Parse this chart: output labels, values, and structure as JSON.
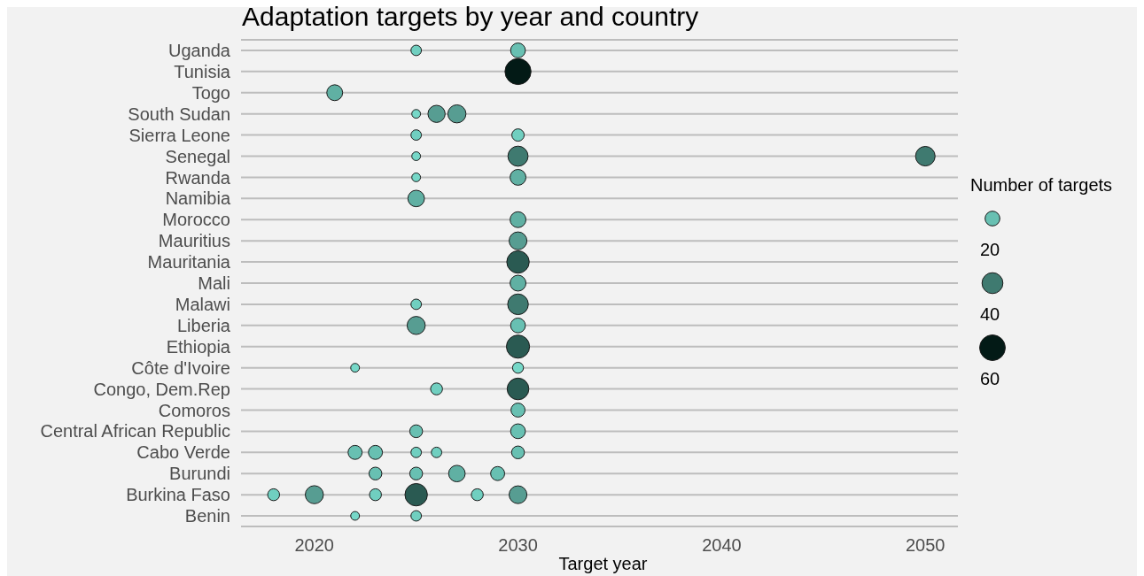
{
  "chart_data": {
    "type": "bubble",
    "orientation": "horizontal",
    "title": "Adaptation targets by year and country",
    "xlabel": "Target year",
    "legend_title": "Number of targets",
    "grid": "y",
    "marker": "circle",
    "categories": [
      "Uganda",
      "Tunisia",
      "Togo",
      "South Sudan",
      "Sierra Leone",
      "Senegal",
      "Rwanda",
      "Namibia",
      "Morocco",
      "Mauritius",
      "Mauritania",
      "Mali",
      "Malawi",
      "Liberia",
      "Ethiopia",
      "Côte d'Ivoire",
      "Congo, Dem.Rep",
      "Comoros",
      "Central African Republic",
      "Cabo Verde",
      "Burundi",
      "Burkina Faso",
      "Benin"
    ],
    "xlim": [
      2016.4,
      2051.6
    ],
    "xticks": [
      2020,
      2030,
      2040,
      2050
    ],
    "size_legend": [
      20,
      40,
      60
    ],
    "series": [
      {
        "values": [
          2025,
          2030,
          2021,
          2025,
          2025,
          2025,
          2025,
          2025,
          2030,
          2030,
          2030,
          2030,
          2025,
          2025,
          2030,
          2022,
          2026,
          2030,
          2025,
          2022,
          2023,
          2018,
          2022
        ],
        "sizes": [
          10,
          62,
          23,
          7,
          10,
          7,
          7,
          25,
          23,
          29,
          46,
          23,
          10,
          30,
          49,
          7,
          13,
          18,
          15,
          18,
          15,
          13,
          7
        ],
        "colors": [
          "#70cfc0",
          "#031a16",
          "#60b0a3",
          "#76d8c8",
          "#70cfc0",
          "#76d8c8",
          "#76d8c8",
          "#60b0a3",
          "#60b0a3",
          "#579d92",
          "#2a5a52",
          "#60b0a3",
          "#70cfc0",
          "#579d92",
          "#2a5a52",
          "#76d8c8",
          "#70cfc0",
          "#68c0b2",
          "#68c0b2",
          "#68c0b2",
          "#68c0b2",
          "#70cfc0",
          "#76d8c8"
        ]
      },
      {
        "values": [
          2030,
          null,
          null,
          2026,
          2030,
          2030,
          2030,
          null,
          null,
          null,
          null,
          null,
          2030,
          2030,
          null,
          2030,
          2030,
          null,
          2030,
          2023,
          2025,
          2020,
          2025
        ],
        "sizes": [
          20,
          null,
          null,
          27,
          14,
          37,
          23,
          null,
          null,
          null,
          null,
          null,
          39,
          20,
          null,
          11,
          43,
          null,
          20,
          18,
          15,
          30,
          10
        ],
        "colors": [
          "#68c0b2",
          null,
          null,
          "#579d92",
          "#70cfc0",
          "#3f7a70",
          "#60b0a3",
          null,
          null,
          null,
          null,
          null,
          "#3f7a70",
          "#68c0b2",
          null,
          "#76d8c8",
          "#2a5a52",
          null,
          "#68c0b2",
          "#68c0b2",
          "#68c0b2",
          "#579d92",
          "#70cfc0"
        ]
      },
      {
        "values": [
          null,
          null,
          null,
          2027,
          null,
          2050,
          null,
          null,
          null,
          null,
          null,
          null,
          null,
          null,
          null,
          null,
          null,
          null,
          null,
          2025,
          2027,
          2023,
          null
        ],
        "sizes": [
          null,
          null,
          null,
          30,
          null,
          35,
          null,
          null,
          null,
          null,
          null,
          null,
          null,
          null,
          null,
          null,
          null,
          null,
          null,
          10,
          25,
          13,
          null
        ],
        "colors": [
          null,
          null,
          null,
          "#579d92",
          null,
          "#3f7a70",
          null,
          null,
          null,
          null,
          null,
          null,
          null,
          null,
          null,
          null,
          null,
          null,
          null,
          "#70cfc0",
          "#60b0a3",
          "#70cfc0",
          null
        ]
      },
      {
        "values": [
          null,
          null,
          null,
          null,
          null,
          null,
          null,
          null,
          null,
          null,
          null,
          null,
          null,
          null,
          null,
          null,
          null,
          null,
          null,
          2026,
          2029,
          2025,
          null
        ],
        "sizes": [
          null,
          null,
          null,
          null,
          null,
          null,
          null,
          null,
          null,
          null,
          null,
          null,
          null,
          null,
          null,
          null,
          null,
          null,
          null,
          10,
          18,
          46,
          null
        ],
        "colors": [
          null,
          null,
          null,
          null,
          null,
          null,
          null,
          null,
          null,
          null,
          null,
          null,
          null,
          null,
          null,
          null,
          null,
          null,
          null,
          "#70cfc0",
          "#68c0b2",
          "#2a5a52",
          null
        ]
      },
      {
        "values": [
          null,
          null,
          null,
          null,
          null,
          null,
          null,
          null,
          null,
          null,
          null,
          null,
          null,
          null,
          null,
          null,
          null,
          null,
          null,
          2030,
          null,
          2028,
          null
        ],
        "sizes": [
          null,
          null,
          null,
          null,
          null,
          null,
          null,
          null,
          null,
          null,
          null,
          null,
          null,
          null,
          null,
          null,
          null,
          null,
          null,
          15,
          null,
          13,
          null
        ],
        "colors": [
          null,
          null,
          null,
          null,
          null,
          null,
          null,
          null,
          null,
          null,
          null,
          null,
          null,
          null,
          null,
          null,
          null,
          null,
          null,
          "#68c0b2",
          null,
          "#70cfc0",
          null
        ]
      },
      {
        "values": [
          null,
          null,
          null,
          null,
          null,
          null,
          null,
          null,
          null,
          null,
          null,
          null,
          null,
          null,
          null,
          null,
          null,
          null,
          null,
          null,
          null,
          2030,
          null
        ],
        "sizes": [
          null,
          null,
          null,
          null,
          null,
          null,
          null,
          null,
          null,
          null,
          null,
          null,
          null,
          null,
          null,
          null,
          null,
          null,
          null,
          null,
          null,
          29,
          null
        ],
        "colors": [
          null,
          null,
          null,
          null,
          null,
          null,
          null,
          null,
          null,
          null,
          null,
          null,
          null,
          null,
          null,
          null,
          null,
          null,
          null,
          null,
          null,
          "#579d92",
          null
        ]
      }
    ]
  }
}
